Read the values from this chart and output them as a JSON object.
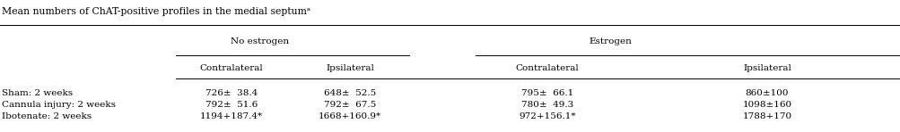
{
  "title": "Mean numbers of ChAT-positive profiles in the medial septumᵃ",
  "col_headers": [
    "Contralateral",
    "Ipsilateral",
    "Contralateral",
    "Ipsilateral"
  ],
  "group_labels": [
    "No estrogen",
    "Estrogen"
  ],
  "row_labels": [
    "Sham: 2 weeks",
    "Cannula injury: 2 weeks",
    "Ibotenate: 2 weeks"
  ],
  "data": [
    [
      "726±  38.4",
      "648±  52.5",
      "795±  66.1",
      "860±100"
    ],
    [
      "792±  51.6",
      "792±  67.5",
      "780±  49.3",
      "1098±160"
    ],
    [
      "1194+187.4*",
      "1668+160.9*",
      "972+156.1*",
      "1788+170"
    ]
  ],
  "bg_color": "#ffffff",
  "text_color": "#000000",
  "font_size": 7.5,
  "title_font_size": 7.8
}
